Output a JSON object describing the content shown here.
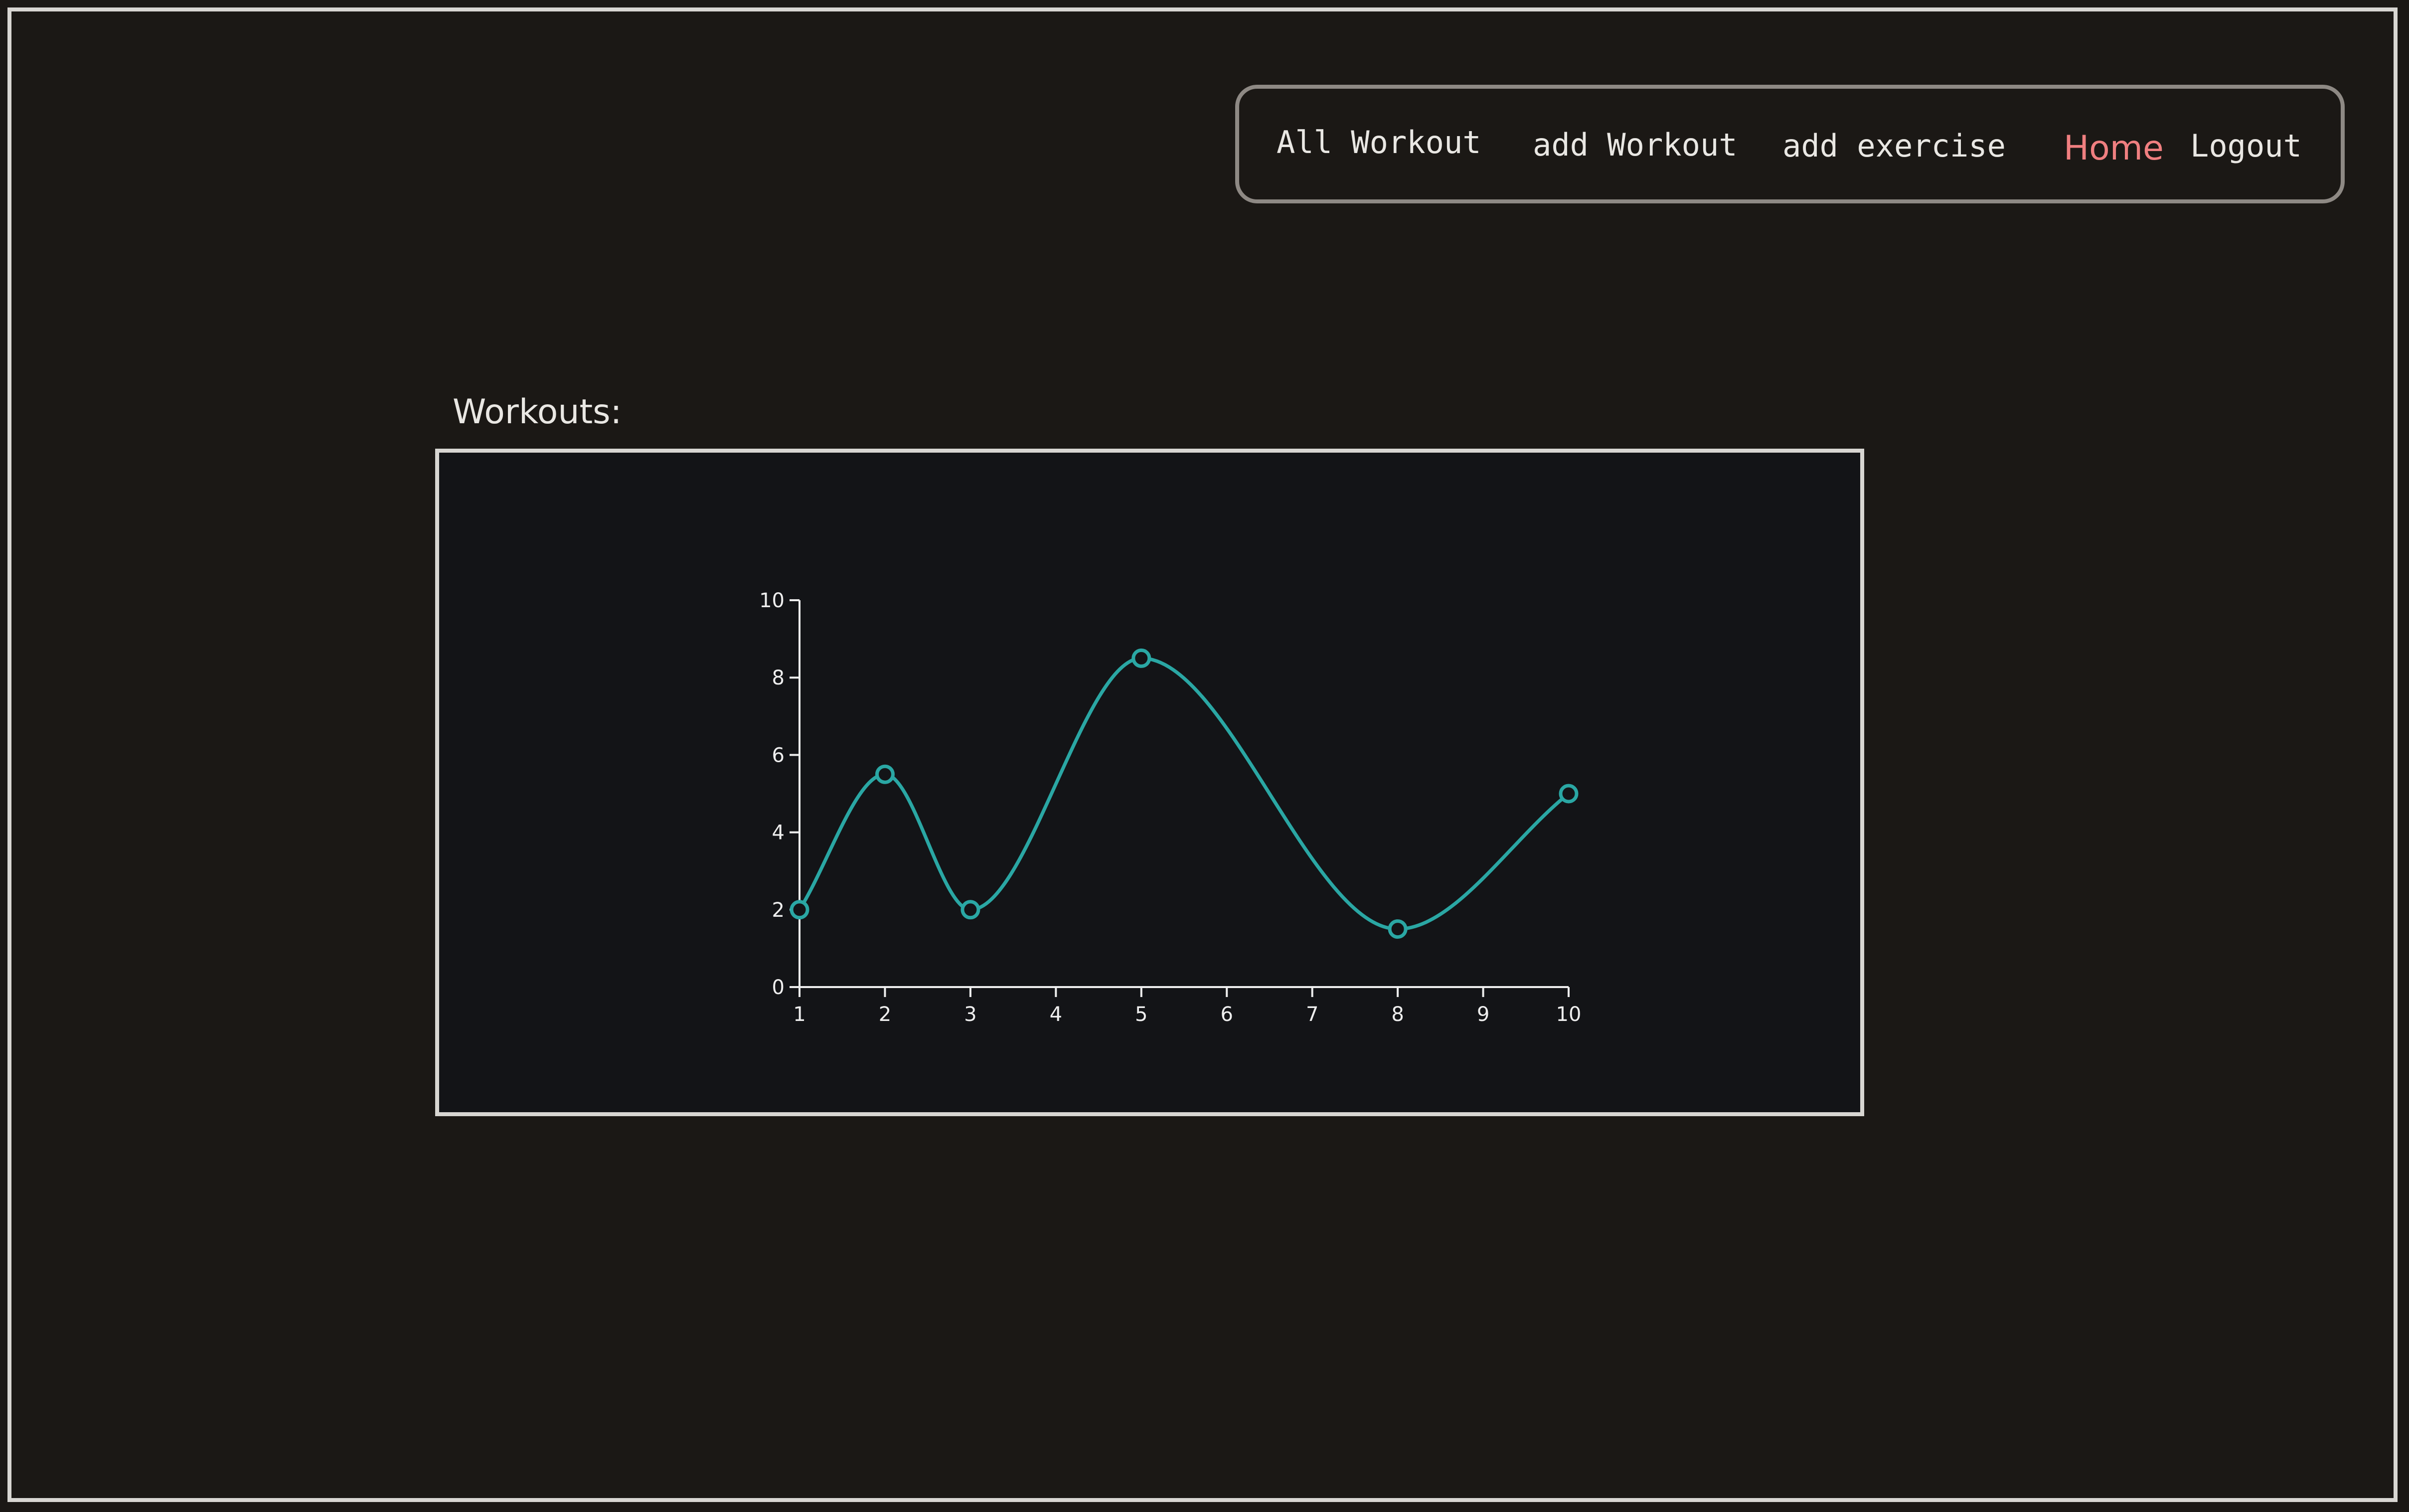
{
  "nav": {
    "items": [
      {
        "label": "All Workout"
      },
      {
        "label": "add Workout"
      },
      {
        "label": "add exercise"
      },
      {
        "label": "Home",
        "active": true
      },
      {
        "label": "Logout"
      }
    ],
    "active_color": "#f07f80",
    "text_color": "#e9e7e3"
  },
  "workouts": {
    "title": "Workouts:"
  },
  "chart_data": {
    "type": "line",
    "curve": "smooth",
    "x": [
      1,
      2,
      3,
      5,
      8,
      10
    ],
    "values": [
      2,
      5.5,
      2,
      8.5,
      1.5,
      5
    ],
    "xlim": [
      1,
      10
    ],
    "ylim": [
      0,
      10
    ],
    "x_ticks": [
      "1",
      "2",
      "3",
      "4",
      "5",
      "6",
      "7",
      "8",
      "9",
      "10"
    ],
    "y_ticks": [
      "0",
      "2",
      "4",
      "6",
      "8",
      "10"
    ],
    "grid": false,
    "line_color": "#2aa7a4",
    "title": "",
    "xlabel": "",
    "ylabel": ""
  }
}
